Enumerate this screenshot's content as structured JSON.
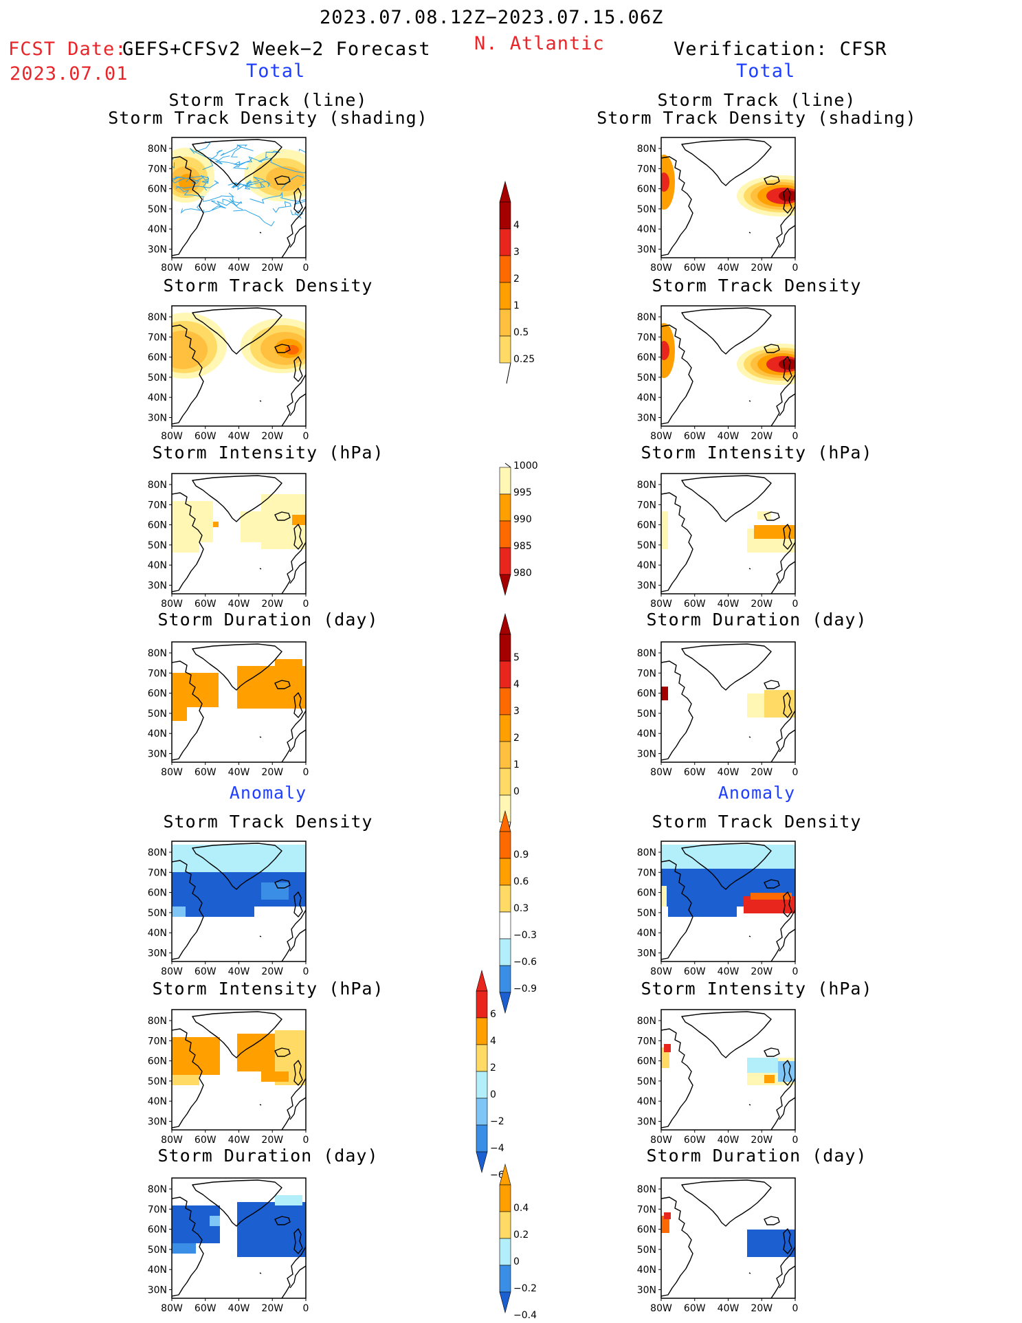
{
  "header": {
    "date_range": "2023.07.08.12Z−2023.07.15.06Z",
    "region": "N. Atlantic",
    "fcst_label": "FCST Date:",
    "fcst_date": "2023.07.01",
    "forecast_name": "GEFS+CFSv2 Week−2 Forecast",
    "verification": "Verification: CFSR",
    "total_label": "Total",
    "anomaly_label": "Anomaly"
  },
  "panel_titles": {
    "track_line": "Storm Track (line)",
    "track_shading": "Storm Track Density (shading)",
    "density": "Storm Track Density",
    "intensity": "Storm Intensity (hPa)",
    "duration": "Storm Duration (day)"
  },
  "axes": {
    "lat_ticks": [
      "80N",
      "70N",
      "60N",
      "50N",
      "40N",
      "30N"
    ],
    "lon_ticks": [
      "80W",
      "60W",
      "40W",
      "20W",
      "0"
    ]
  },
  "colorbars": {
    "density_total": [
      "4",
      "3",
      "2",
      "1",
      "0.5",
      "0.25"
    ],
    "intensity_total": [
      "1000",
      "995",
      "990",
      "985",
      "980"
    ],
    "duration_total": [
      "5",
      "4",
      "3",
      "2",
      "1",
      "0"
    ],
    "density_anom": [
      "0.9",
      "0.6",
      "0.3",
      "−0.3",
      "−0.6",
      "−0.9"
    ],
    "intensity_anom": [
      "6",
      "4",
      "2",
      "0",
      "−2",
      "−4",
      "−6"
    ],
    "duration_anom": [
      "0.4",
      "0.2",
      "0",
      "−0.2",
      "−0.4"
    ]
  },
  "colors": {
    "yellow_light": "#fff7b3",
    "yellow": "#ffdb66",
    "orange_light": "#ffbf3f",
    "orange": "#ff9f00",
    "orange_dark": "#ff6a00",
    "red": "#e8261d",
    "dark_red": "#a50000",
    "blue_light": "#b3eefb",
    "blue_mid": "#7fc5f5",
    "blue": "#3a8ee6",
    "blue_dark": "#1b5fd0",
    "track_line": "#2aa3e8"
  }
}
